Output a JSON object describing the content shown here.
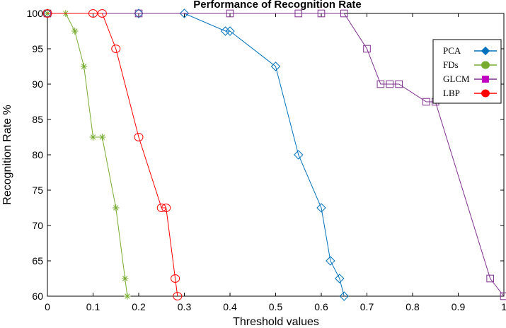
{
  "chart_data": {
    "type": "line",
    "title": "Performance of Recognition Rate",
    "xlabel": "Threshold values",
    "ylabel": "Recognition Rate %",
    "xlim": [
      0,
      1
    ],
    "ylim": [
      60,
      100
    ],
    "x_ticks": [
      "0",
      "0.1",
      "0.2",
      "0.3",
      "0.4",
      "0.5",
      "0.6",
      "0.7",
      "0.8",
      "0.9",
      "1"
    ],
    "y_ticks": [
      "60",
      "65",
      "70",
      "75",
      "80",
      "85",
      "90",
      "95",
      "100"
    ],
    "grid": false,
    "legend_position": "top-right",
    "series": [
      {
        "name": "PCA",
        "color": "#0072BD",
        "marker": "diamond",
        "points": [
          [
            0,
            100
          ],
          [
            0.2,
            100
          ],
          [
            0.3,
            100
          ],
          [
            0.39,
            97.5
          ],
          [
            0.4,
            97.5
          ],
          [
            0.5,
            92.5
          ],
          [
            0.55,
            80
          ],
          [
            0.6,
            72.5
          ],
          [
            0.62,
            65
          ],
          [
            0.64,
            62.5
          ],
          [
            0.65,
            60
          ]
        ]
      },
      {
        "name": "FDs",
        "color": "#77AC30",
        "marker": "asterisk",
        "points": [
          [
            0,
            100
          ],
          [
            0.04,
            100
          ],
          [
            0.06,
            97.5
          ],
          [
            0.08,
            92.5
          ],
          [
            0.1,
            82.5
          ],
          [
            0.12,
            82.5
          ],
          [
            0.15,
            72.5
          ],
          [
            0.17,
            62.5
          ],
          [
            0.175,
            60
          ]
        ]
      },
      {
        "name": "GLCM",
        "color": "#7E2F8E",
        "marker": "square",
        "points": [
          [
            0,
            100
          ],
          [
            0.2,
            100
          ],
          [
            0.4,
            100
          ],
          [
            0.55,
            100
          ],
          [
            0.6,
            100
          ],
          [
            0.65,
            100
          ],
          [
            0.7,
            95
          ],
          [
            0.73,
            90
          ],
          [
            0.75,
            90
          ],
          [
            0.77,
            90
          ],
          [
            0.83,
            87.5
          ],
          [
            0.85,
            87.5
          ],
          [
            0.97,
            62.5
          ],
          [
            1.0,
            60
          ]
        ]
      },
      {
        "name": "LBP",
        "color": "#FF0000",
        "marker": "circle",
        "points": [
          [
            0,
            100
          ],
          [
            0.1,
            100
          ],
          [
            0.12,
            100
          ],
          [
            0.15,
            95
          ],
          [
            0.2,
            82.5
          ],
          [
            0.25,
            72.5
          ],
          [
            0.26,
            72.5
          ],
          [
            0.28,
            62.5
          ],
          [
            0.285,
            60
          ]
        ]
      }
    ],
    "legend_marker_colors": {
      "PCA": "#0072BD",
      "FDs": "#77AC30",
      "GLCM": "#C000C0",
      "LBP": "#FF0000"
    }
  }
}
